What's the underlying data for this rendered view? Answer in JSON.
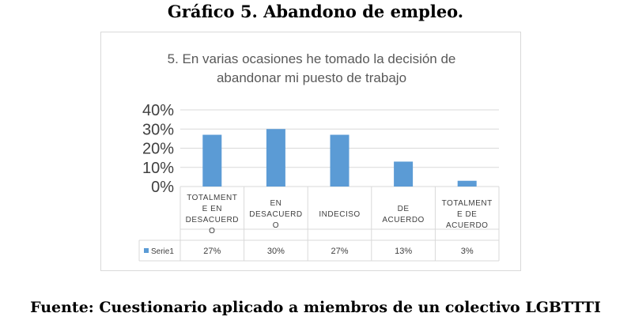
{
  "page": {
    "heading": "Gráfico 5. Abandono de empleo.",
    "source": "Fuente: Cuestionario aplicado a miembros de un colectivo LGBTTTI"
  },
  "chart_data": {
    "type": "bar",
    "title_lines": [
      "5. En varias ocasiones he tomado la decisión de",
      "abandonar mi puesto de trabajo"
    ],
    "categories": [
      [
        "TOTALMENT",
        "E EN",
        "DESACUERD",
        "O"
      ],
      [
        "EN",
        "DESACUERD",
        "O"
      ],
      [
        "INDECISO"
      ],
      [
        "DE",
        "ACUERDO"
      ],
      [
        "TOTALMENT",
        "E DE",
        "ACUERDO"
      ]
    ],
    "series": [
      {
        "name": "Serie1",
        "values": [
          27,
          30,
          27,
          13,
          3
        ],
        "labels": [
          "27%",
          "30%",
          "27%",
          "13%",
          "3%"
        ]
      }
    ],
    "y_ticks": [
      "0%",
      "10%",
      "20%",
      "30%",
      "40%"
    ],
    "ylim": [
      0,
      40
    ],
    "grid": true,
    "legend": "data-table",
    "colors": {
      "bar": "#5b9bd5",
      "grid": "#d9d9d9",
      "text": "#595959",
      "axis_text": "#404040"
    }
  }
}
